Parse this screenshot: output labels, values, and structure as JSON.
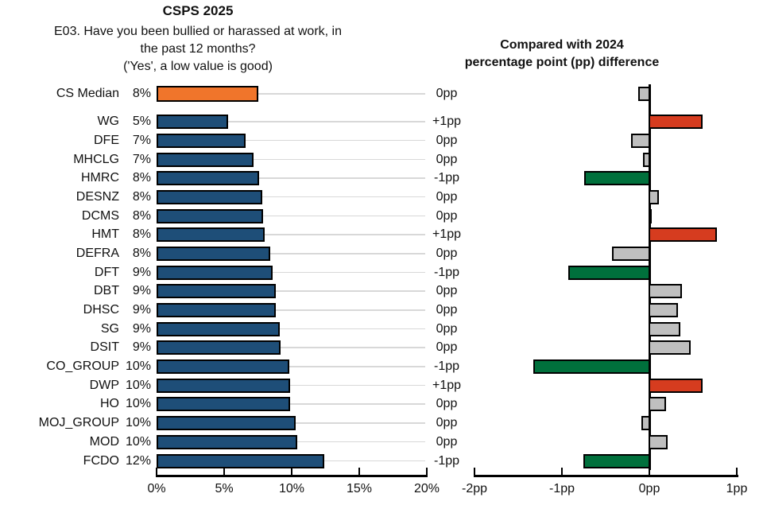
{
  "header": {
    "title": "CSPS 2025",
    "subtitle_lines": [
      "E03. Have you been bullied or harassed at work, in",
      "the past 12 months?",
      "('Yes', a low value is good)"
    ],
    "right_title_lines": [
      "Compared with 2024",
      "percentage point (pp) difference"
    ]
  },
  "colors": {
    "navy": "#1E4E78",
    "orange": "#F0752B",
    "red": "#D63C1F",
    "green": "#00703C",
    "gray": "#BFBFBF",
    "gridline": "#D8D8D8",
    "axis": "#000000"
  },
  "chart_data": {
    "type": "bar",
    "orientation": "horizontal",
    "left_chart": {
      "title": "CSPS 2025",
      "xlim": [
        0,
        20
      ],
      "tick_values": [
        0,
        5,
        10,
        15,
        20
      ],
      "tick_labels": [
        "0%",
        "5%",
        "10%",
        "15%",
        "20%"
      ],
      "grid": true
    },
    "right_chart": {
      "title": "Compared with 2024 percentage point (pp) difference",
      "xlim": [
        -2,
        1
      ],
      "tick_values": [
        -2,
        -1,
        0,
        1
      ],
      "tick_labels": [
        "-2pp",
        "-1pp",
        "0pp",
        "1pp"
      ],
      "grid": false
    },
    "rows": [
      {
        "label": "CS Median",
        "value_label": "8%",
        "value_pct": 7.5,
        "bar_color": "orange",
        "diff_label": "0pp",
        "diff_pp": -0.12,
        "diff_color": "gray",
        "is_median": true
      },
      {
        "label": "WG",
        "value_label": "5%",
        "value_pct": 5.3,
        "bar_color": "navy",
        "diff_label": "+1pp",
        "diff_pp": 0.6,
        "diff_color": "red"
      },
      {
        "label": "DFE",
        "value_label": "7%",
        "value_pct": 6.6,
        "bar_color": "navy",
        "diff_label": "0pp",
        "diff_pp": -0.2,
        "diff_color": "gray"
      },
      {
        "label": "MHCLG",
        "value_label": "7%",
        "value_pct": 7.2,
        "bar_color": "navy",
        "diff_label": "0pp",
        "diff_pp": -0.06,
        "diff_color": "gray"
      },
      {
        "label": "HMRC",
        "value_label": "8%",
        "value_pct": 7.6,
        "bar_color": "navy",
        "diff_label": "-1pp",
        "diff_pp": -0.73,
        "diff_color": "green"
      },
      {
        "label": "DESNZ",
        "value_label": "8%",
        "value_pct": 7.8,
        "bar_color": "navy",
        "diff_label": "0pp",
        "diff_pp": 0.1,
        "diff_color": "gray"
      },
      {
        "label": "DCMS",
        "value_label": "8%",
        "value_pct": 7.9,
        "bar_color": "navy",
        "diff_label": "0pp",
        "diff_pp": 0.02,
        "diff_color": "gray"
      },
      {
        "label": "HMT",
        "value_label": "8%",
        "value_pct": 8.0,
        "bar_color": "navy",
        "diff_label": "+1pp",
        "diff_pp": 0.76,
        "diff_color": "red"
      },
      {
        "label": "DEFRA",
        "value_label": "8%",
        "value_pct": 8.4,
        "bar_color": "navy",
        "diff_label": "0pp",
        "diff_pp": -0.42,
        "diff_color": "gray"
      },
      {
        "label": "DFT",
        "value_label": "9%",
        "value_pct": 8.6,
        "bar_color": "navy",
        "diff_label": "-1pp",
        "diff_pp": -0.92,
        "diff_color": "green"
      },
      {
        "label": "DBT",
        "value_label": "9%",
        "value_pct": 8.8,
        "bar_color": "navy",
        "diff_label": "0pp",
        "diff_pp": 0.36,
        "diff_color": "gray"
      },
      {
        "label": "DHSC",
        "value_label": "9%",
        "value_pct": 8.8,
        "bar_color": "navy",
        "diff_label": "0pp",
        "diff_pp": 0.32,
        "diff_color": "gray"
      },
      {
        "label": "SG",
        "value_label": "9%",
        "value_pct": 9.1,
        "bar_color": "navy",
        "diff_label": "0pp",
        "diff_pp": 0.34,
        "diff_color": "gray"
      },
      {
        "label": "DSIT",
        "value_label": "9%",
        "value_pct": 9.2,
        "bar_color": "navy",
        "diff_label": "0pp",
        "diff_pp": 0.46,
        "diff_color": "gray"
      },
      {
        "label": "CO_GROUP",
        "value_label": "10%",
        "value_pct": 9.8,
        "bar_color": "navy",
        "diff_label": "-1pp",
        "diff_pp": -1.32,
        "diff_color": "green"
      },
      {
        "label": "DWP",
        "value_label": "10%",
        "value_pct": 9.9,
        "bar_color": "navy",
        "diff_label": "+1pp",
        "diff_pp": 0.6,
        "diff_color": "red"
      },
      {
        "label": "HO",
        "value_label": "10%",
        "value_pct": 9.9,
        "bar_color": "navy",
        "diff_label": "0pp",
        "diff_pp": 0.18,
        "diff_color": "gray"
      },
      {
        "label": "MOJ_GROUP",
        "value_label": "10%",
        "value_pct": 10.3,
        "bar_color": "navy",
        "diff_label": "0pp",
        "diff_pp": -0.08,
        "diff_color": "gray"
      },
      {
        "label": "MOD",
        "value_label": "10%",
        "value_pct": 10.4,
        "bar_color": "navy",
        "diff_label": "0pp",
        "diff_pp": 0.2,
        "diff_color": "gray"
      },
      {
        "label": "FCDO",
        "value_label": "12%",
        "value_pct": 12.4,
        "bar_color": "navy",
        "diff_label": "-1pp",
        "diff_pp": -0.74,
        "diff_color": "green"
      }
    ]
  }
}
